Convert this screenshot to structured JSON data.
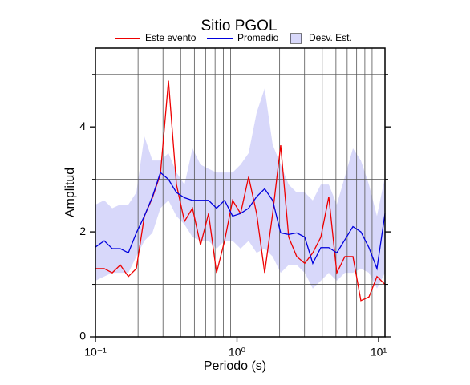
{
  "chart_data": {
    "type": "line",
    "title": "Sitio PGOL",
    "xlabel": "Periodo (s)",
    "ylabel": "Amplitud",
    "xlog": true,
    "xlim": [
      0.1,
      11.1
    ],
    "ylim": [
      0,
      5.5
    ],
    "xticks": [
      {
        "value": 0.1,
        "label": "10⁻¹"
      },
      {
        "value": 1,
        "label": "10⁰"
      },
      {
        "value": 10,
        "label": "10¹"
      }
    ],
    "xgrid": [
      0.2,
      0.3,
      0.4,
      0.5,
      0.6,
      0.7,
      0.8,
      0.9,
      2,
      3,
      4,
      5,
      6,
      7,
      8,
      9
    ],
    "yticks": [
      0,
      2,
      4
    ],
    "ygrid": [
      1,
      3,
      5
    ],
    "x": [
      0.1,
      0.1154,
      0.1315,
      0.1498,
      0.1708,
      0.1945,
      0.2216,
      0.2526,
      0.2877,
      0.328,
      0.3735,
      0.4256,
      0.4849,
      0.5525,
      0.6295,
      0.7172,
      0.8172,
      0.9308,
      1.06,
      1.208,
      1.376,
      1.568,
      1.786,
      2.035,
      2.318,
      2.641,
      3.01,
      3.43,
      3.91,
      4.45,
      5.07,
      5.78,
      6.59,
      7.5,
      8.55,
      9.74,
      11.1
    ],
    "series": [
      {
        "name": "Este evento",
        "color": "#ee0000",
        "values": [
          1.3,
          1.3,
          1.22,
          1.37,
          1.15,
          1.3,
          2.3,
          2.65,
          3.1,
          4.88,
          2.9,
          2.2,
          2.45,
          1.75,
          2.35,
          1.22,
          1.83,
          2.6,
          2.35,
          3.05,
          2.35,
          1.22,
          2.35,
          3.65,
          1.9,
          1.53,
          1.4,
          1.6,
          1.9,
          2.67,
          1.22,
          1.53,
          1.53,
          0.69,
          0.76,
          1.15,
          1.0
        ]
      },
      {
        "name": "Promedio",
        "color": "#0000dd",
        "values": [
          1.71,
          1.83,
          1.68,
          1.68,
          1.6,
          1.98,
          2.3,
          2.67,
          3.13,
          3.0,
          2.75,
          2.65,
          2.6,
          2.6,
          2.6,
          2.45,
          2.6,
          2.3,
          2.35,
          2.45,
          2.67,
          2.82,
          2.6,
          1.98,
          1.95,
          1.98,
          1.9,
          1.4,
          1.7,
          1.7,
          1.6,
          1.85,
          2.1,
          2.0,
          1.7,
          1.3,
          2.35
        ]
      }
    ],
    "band": {
      "name": "Desv. Est.",
      "color": "#d8d8fa",
      "upper": [
        2.52,
        2.6,
        2.45,
        2.52,
        2.52,
        2.75,
        3.82,
        3.36,
        3.36,
        3.5,
        3.13,
        2.9,
        3.59,
        3.28,
        3.2,
        3.13,
        3.13,
        3.13,
        3.28,
        3.5,
        4.27,
        4.73,
        3.66,
        3.28,
        2.9,
        2.75,
        2.75,
        2.6,
        2.9,
        2.9,
        2.52,
        3.05,
        3.59,
        3.36,
        2.9,
        2.3,
        3.05
      ],
      "lower": [
        1.07,
        1.15,
        1.22,
        1.22,
        1.22,
        1.53,
        1.83,
        1.98,
        2.45,
        2.6,
        2.3,
        2.14,
        1.9,
        1.83,
        1.83,
        1.68,
        1.83,
        1.83,
        1.68,
        1.83,
        1.6,
        1.68,
        1.53,
        1.22,
        1.37,
        1.37,
        1.22,
        0.92,
        1.07,
        1.22,
        1.07,
        1.22,
        1.22,
        1.3,
        1.22,
        0.92,
        1.22
      ]
    }
  }
}
